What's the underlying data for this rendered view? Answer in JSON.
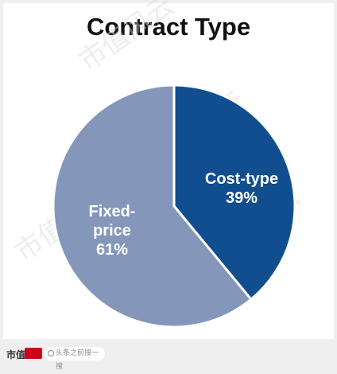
{
  "chart_data": {
    "type": "pie",
    "title": "Contract Type",
    "slices": [
      {
        "label": "Cost-type",
        "value": 39,
        "percent_label": "39%",
        "color": "#114e8f"
      },
      {
        "label": "Fixed-price",
        "value": 61,
        "percent_label": "61%",
        "color": "#8497ba"
      }
    ]
  },
  "footer": {
    "brand": "市值",
    "search_placeholder": "头条之前搜一搜"
  },
  "watermark": "市值风云"
}
